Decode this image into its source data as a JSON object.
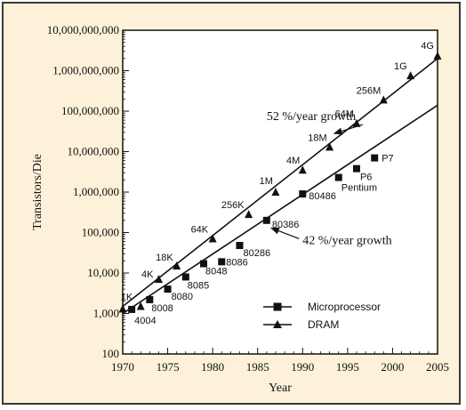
{
  "chart_data": {
    "type": "scatter",
    "xlabel": "Year",
    "ylabel": "Transistors/Die",
    "xlim": [
      1970,
      2005
    ],
    "ylim": [
      100,
      10000000000
    ],
    "yscale": "log",
    "background": "#fdf2d9",
    "x_ticks": [
      "1970",
      "1975",
      "1980",
      "1985",
      "1990",
      "1995",
      "2000",
      "2005"
    ],
    "y_ticks": [
      "100",
      "1,000",
      "10,000",
      "100,000",
      "1,000,000",
      "10,000,000",
      "100,000,000",
      "1,000,000,000",
      "10,000,000,000"
    ],
    "series": [
      {
        "name": "Microprocessor",
        "marker": "square",
        "points": [
          {
            "x": 1971,
            "y": 1260,
            "label": "4004"
          },
          {
            "x": 1973,
            "y": 2200,
            "label": "8008"
          },
          {
            "x": 1975,
            "y": 4000,
            "label": "8080"
          },
          {
            "x": 1977,
            "y": 8000,
            "label": "8085"
          },
          {
            "x": 1979,
            "y": 17000,
            "label": "8048"
          },
          {
            "x": 1981,
            "y": 19000,
            "label": "8086"
          },
          {
            "x": 1983,
            "y": 48000,
            "label": "80286"
          },
          {
            "x": 1986,
            "y": 200000,
            "label": "80386"
          },
          {
            "x": 1990,
            "y": 900000,
            "label": "80486"
          },
          {
            "x": 1994,
            "y": 2300000,
            "label": "Pentium"
          },
          {
            "x": 1996,
            "y": 3800000,
            "label": "P6"
          },
          {
            "x": 1998,
            "y": 7000000,
            "label": "P7"
          }
        ]
      },
      {
        "name": "DRAM",
        "marker": "triangle",
        "points": [
          {
            "x": 1970,
            "y": 1300,
            "label": ""
          },
          {
            "x": 1972,
            "y": 1500,
            "label": "1K"
          },
          {
            "x": 1974,
            "y": 7000,
            "label": "4K"
          },
          {
            "x": 1976,
            "y": 15000,
            "label": "18K"
          },
          {
            "x": 1980,
            "y": 70000,
            "label": "64K"
          },
          {
            "x": 1984,
            "y": 280000,
            "label": "256K"
          },
          {
            "x": 1987,
            "y": 1000000,
            "label": "1M"
          },
          {
            "x": 1990,
            "y": 3500000,
            "label": "4M"
          },
          {
            "x": 1993,
            "y": 13000000,
            "label": "18M"
          },
          {
            "x": 1996,
            "y": 50000000,
            "label": "64M"
          },
          {
            "x": 1999,
            "y": 190000000,
            "label": "256M"
          },
          {
            "x": 2002,
            "y": 750000000,
            "label": "1G"
          },
          {
            "x": 2005,
            "y": 2300000000,
            "label": "4G"
          }
        ]
      }
    ],
    "trend_lines": [
      {
        "name": "DRAM",
        "from": [
          1970,
          1500
        ],
        "to": [
          2005,
          2000000000
        ]
      },
      {
        "name": "Microprocessor",
        "from": [
          1970,
          1000
        ],
        "to": [
          2005,
          140000000
        ]
      }
    ],
    "annotations": [
      {
        "text": "52 %/year growth",
        "x": 1986,
        "y": 60000000,
        "arrow_to": [
          1993.5,
          28000000
        ]
      },
      {
        "text": "42 %/year growth",
        "x": 1990,
        "y": 52000,
        "arrow_to": [
          1986.5,
          130000
        ]
      }
    ],
    "legend_position": "bottom-right"
  }
}
